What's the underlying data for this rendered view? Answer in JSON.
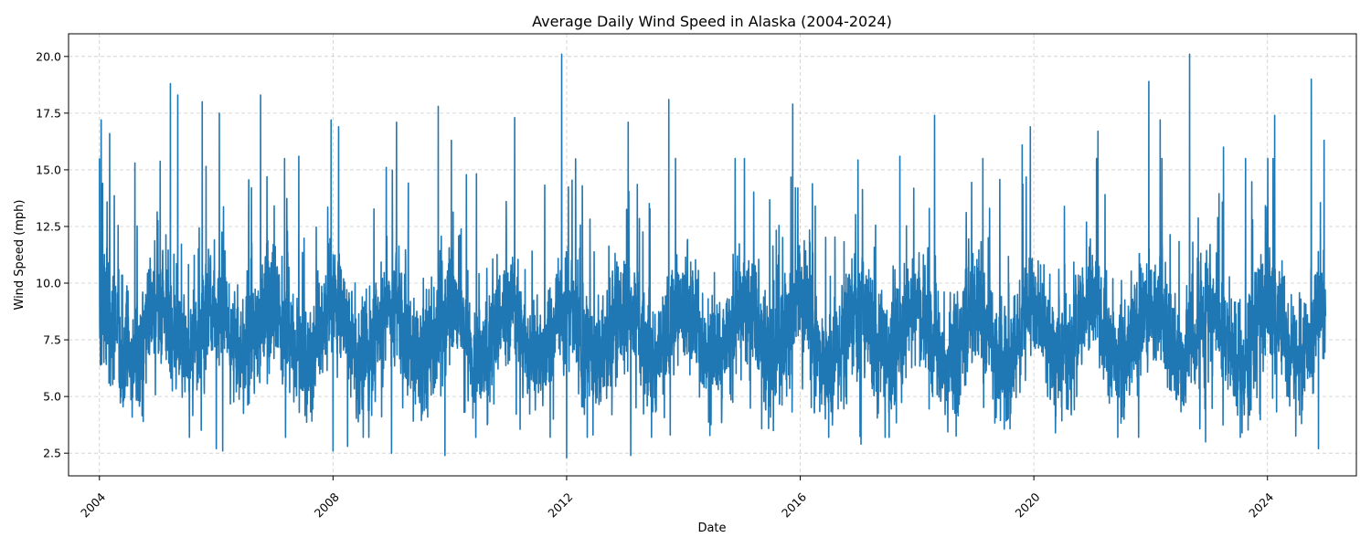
{
  "chart_data": {
    "type": "line",
    "title": "Average Daily Wind Speed in Alaska (2004-2024)",
    "xlabel": "Date",
    "ylabel": "Wind Speed (mph)",
    "x_range": [
      "2003-06-22",
      "2025-07-10"
    ],
    "ylim": [
      1.5,
      21.0
    ],
    "x_ticks": [
      "2004",
      "2008",
      "2012",
      "2016",
      "2020",
      "2024"
    ],
    "y_ticks": [
      "2.5",
      "5.0",
      "7.5",
      "10.0",
      "12.5",
      "15.0",
      "17.5",
      "20.0"
    ],
    "grid": true,
    "legend": "none",
    "colors": {
      "line": "#1f77b4",
      "grid": "#cccccc",
      "axis": "#000000"
    },
    "series": [
      {
        "x_start": "2004-01-01",
        "x_end": "2024-12-31",
        "x_step": "1 day",
        "typical_range": [
          5.0,
          11.0
        ],
        "peaks": [
          {
            "x": "2004-01-12",
            "y": 17.2
          },
          {
            "x": "2004-03-05",
            "y": 16.6
          },
          {
            "x": "2004-08-10",
            "y": 15.3
          },
          {
            "x": "2005-03-20",
            "y": 18.8
          },
          {
            "x": "2005-05-05",
            "y": 18.3
          },
          {
            "x": "2005-10-05",
            "y": 18.0
          },
          {
            "x": "2006-01-20",
            "y": 17.5
          },
          {
            "x": "2006-10-05",
            "y": 18.3
          },
          {
            "x": "2007-06-01",
            "y": 15.6
          },
          {
            "x": "2007-12-20",
            "y": 17.2
          },
          {
            "x": "2008-02-05",
            "y": 16.9
          },
          {
            "x": "2009-02-01",
            "y": 17.1
          },
          {
            "x": "2009-10-20",
            "y": 17.8
          },
          {
            "x": "2010-01-10",
            "y": 16.3
          },
          {
            "x": "2011-02-10",
            "y": 17.3
          },
          {
            "x": "2011-12-01",
            "y": 20.1
          },
          {
            "x": "2013-01-20",
            "y": 17.1
          },
          {
            "x": "2013-10-01",
            "y": 18.1
          },
          {
            "x": "2015-11-15",
            "y": 17.9
          },
          {
            "x": "2017-09-15",
            "y": 15.6
          },
          {
            "x": "2018-04-20",
            "y": 17.4
          },
          {
            "x": "2019-10-20",
            "y": 16.1
          },
          {
            "x": "2019-12-10",
            "y": 16.9
          },
          {
            "x": "2021-02-05",
            "y": 16.7
          },
          {
            "x": "2021-12-20",
            "y": 18.9
          },
          {
            "x": "2022-03-01",
            "y": 17.2
          },
          {
            "x": "2022-09-01",
            "y": 20.1
          },
          {
            "x": "2023-04-01",
            "y": 16.0
          },
          {
            "x": "2024-02-15",
            "y": 17.4
          },
          {
            "x": "2024-10-01",
            "y": 19.0
          },
          {
            "x": "2024-12-20",
            "y": 16.3
          }
        ],
        "troughs": [
          {
            "x": "2006-02-10",
            "y": 2.6
          },
          {
            "x": "2006-01-01",
            "y": 2.7
          },
          {
            "x": "2008-01-01",
            "y": 2.6
          },
          {
            "x": "2008-04-01",
            "y": 2.8
          },
          {
            "x": "2009-01-01",
            "y": 2.5
          },
          {
            "x": "2009-12-01",
            "y": 2.4
          },
          {
            "x": "2012-01-01",
            "y": 2.3
          },
          {
            "x": "2013-02-05",
            "y": 2.4
          },
          {
            "x": "2017-01-15",
            "y": 2.9
          },
          {
            "x": "2022-12-10",
            "y": 3.0
          },
          {
            "x": "2024-11-15",
            "y": 2.7
          }
        ]
      }
    ]
  }
}
